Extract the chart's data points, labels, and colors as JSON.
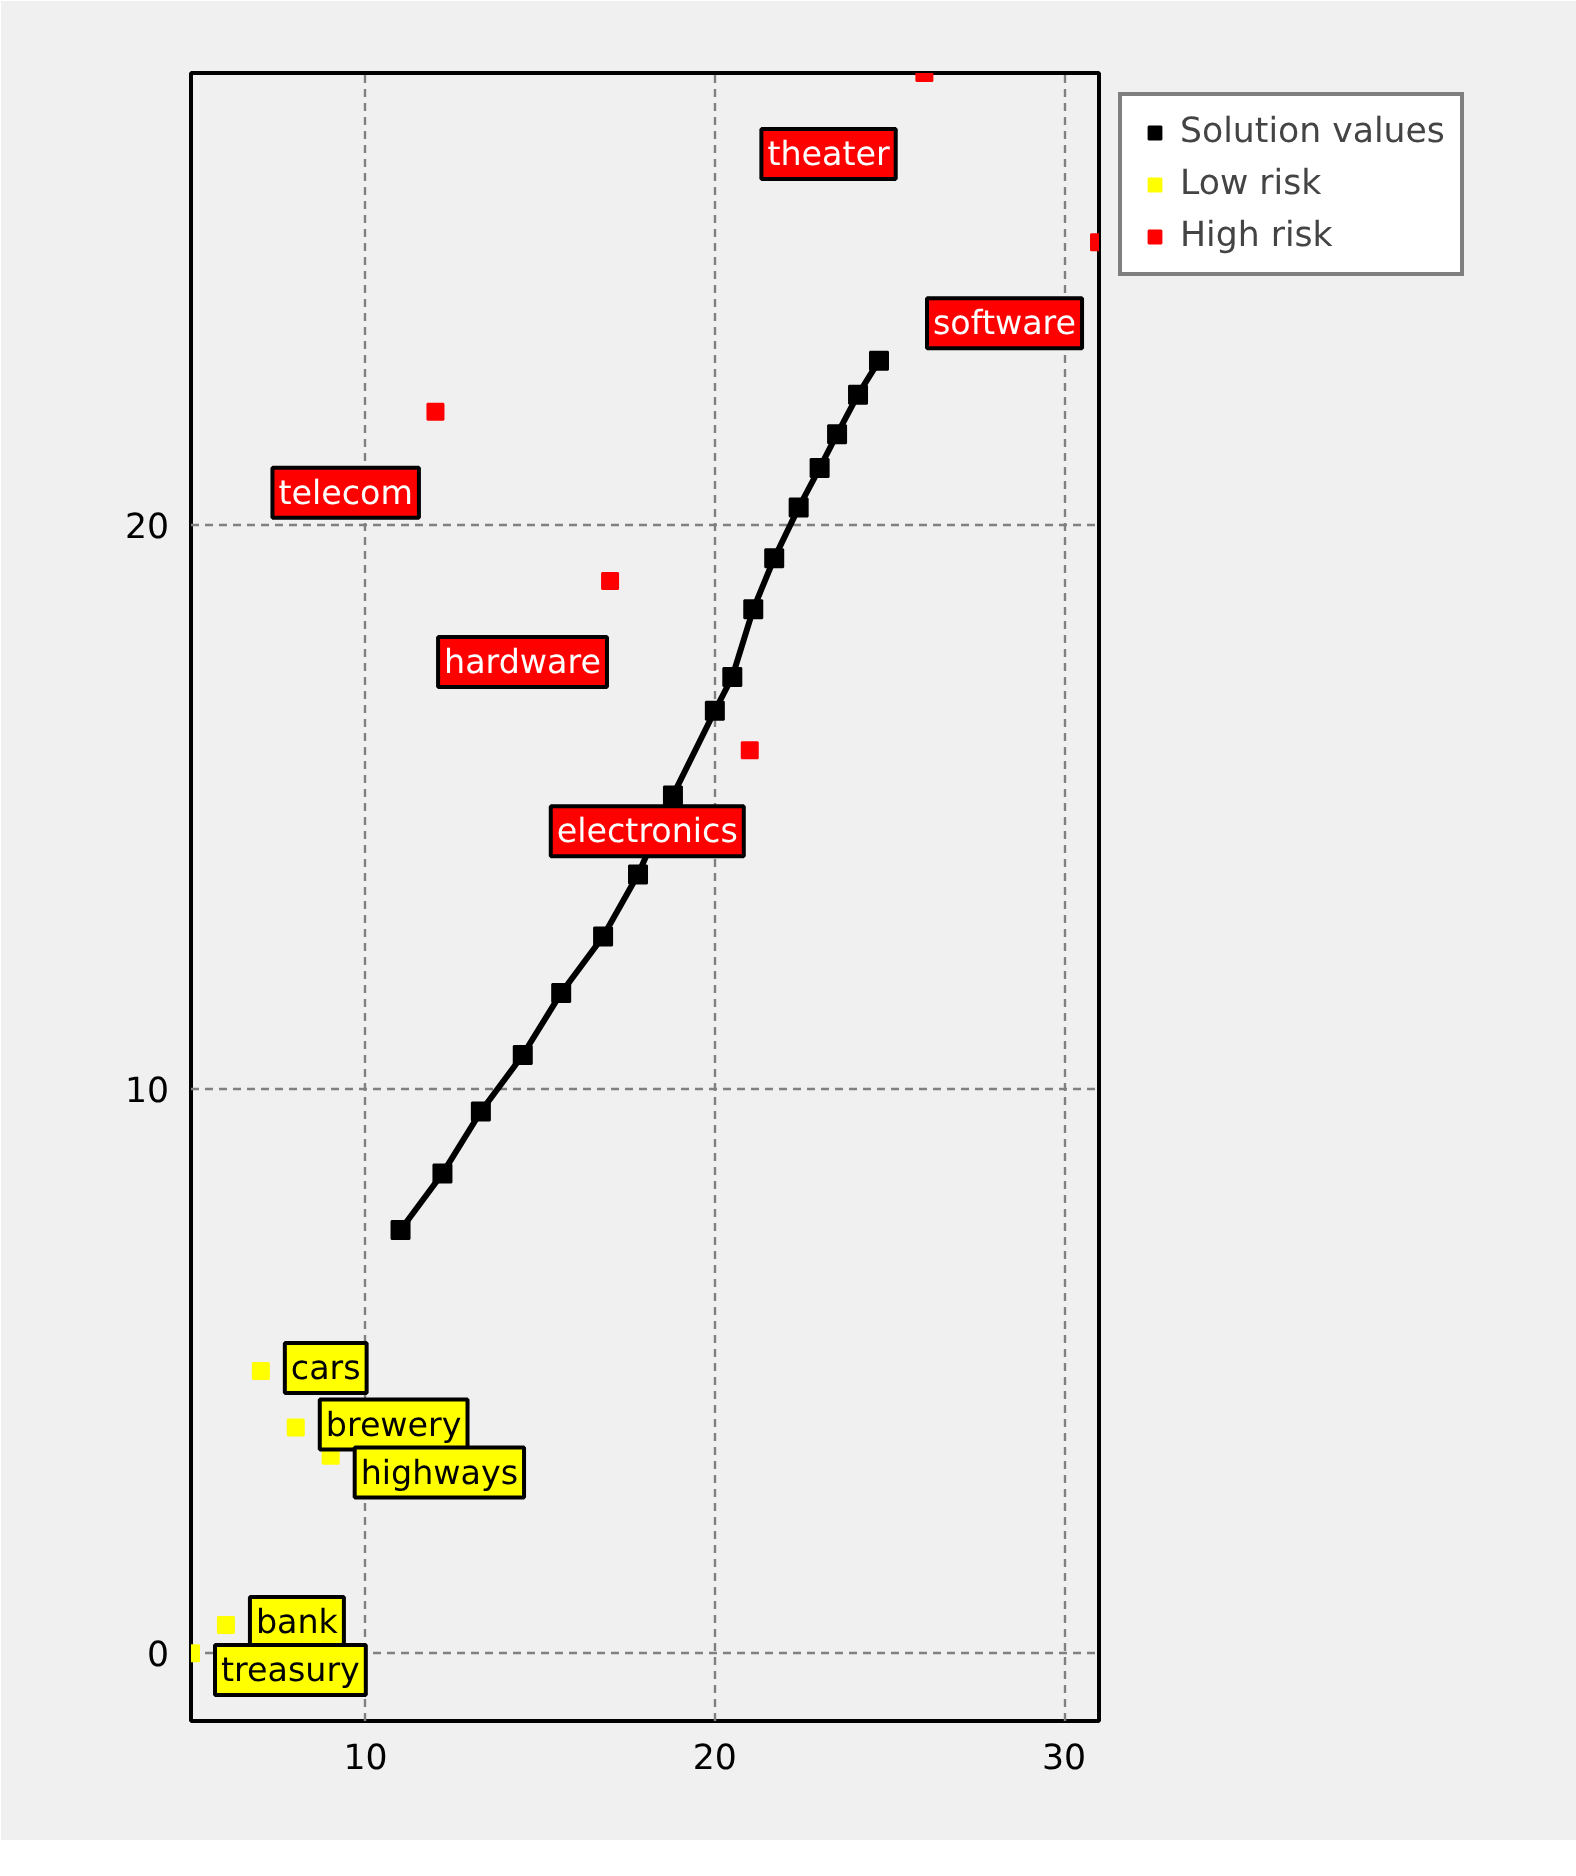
{
  "chart_data": {
    "type": "scatter",
    "marker": "square",
    "grid": true,
    "legend": "top right",
    "xlim": [
      5,
      31
    ],
    "ylim": [
      -1.2,
      28
    ],
    "xticks": [
      10,
      20,
      30
    ],
    "yticks": [
      0,
      10,
      20
    ],
    "series": [
      {
        "name": "Solution values",
        "type": "line",
        "color": "#000000",
        "marker": "square",
        "line_style": "solid",
        "x": [
          11.0,
          12.2,
          13.3,
          14.5,
          15.6,
          16.8,
          17.8,
          18.8,
          20.0,
          20.5,
          21.1,
          21.7,
          22.4,
          23.0,
          23.5,
          24.1,
          24.7
        ],
        "values": [
          7.5,
          8.5,
          9.6,
          10.6,
          11.7,
          12.7,
          13.8,
          15.2,
          16.7,
          17.3,
          18.5,
          19.4,
          20.3,
          21.0,
          21.6,
          22.3,
          22.9
        ]
      },
      {
        "name": "Low risk",
        "color": "#ffff00",
        "x": [
          7,
          8,
          9,
          6,
          5
        ],
        "values": [
          5,
          4,
          3.5,
          0.5,
          0
        ]
      },
      {
        "name": "High risk",
        "color": "#ff0000",
        "x": [
          26,
          31,
          12,
          17,
          21
        ],
        "values": [
          28,
          25,
          22,
          19,
          16
        ]
      }
    ],
    "annotations": [
      {
        "text": "cars",
        "x": 7,
        "y": 5
      },
      {
        "text": "brewery",
        "x": 8,
        "y": 4
      },
      {
        "text": "highways",
        "x": 9,
        "y": 3.5
      },
      {
        "text": "bank",
        "x": 6,
        "y": 0.5
      },
      {
        "text": "treasury",
        "x": 5,
        "y": 0
      },
      {
        "text": "theater",
        "x": 26,
        "y": 28
      },
      {
        "text": "software",
        "x": 31,
        "y": 25
      },
      {
        "text": "telecom",
        "x": 12,
        "y": 22
      },
      {
        "text": "hardware",
        "x": 17,
        "y": 19
      },
      {
        "text": "electronics",
        "x": 21,
        "y": 16
      }
    ]
  }
}
